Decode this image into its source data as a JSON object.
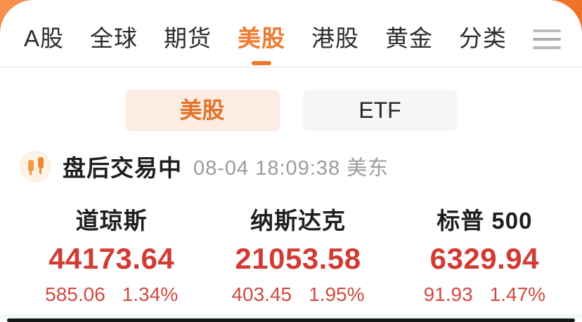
{
  "nav": {
    "tabs": [
      {
        "label": "A股",
        "active": false
      },
      {
        "label": "全球",
        "active": false
      },
      {
        "label": "期货",
        "active": false
      },
      {
        "label": "美股",
        "active": true
      },
      {
        "label": "港股",
        "active": false
      },
      {
        "label": "黄金",
        "active": false
      },
      {
        "label": "分类",
        "active": false
      }
    ],
    "menu_icon": "hamburger-menu"
  },
  "toggle": {
    "options": [
      {
        "label": "美股",
        "selected": true
      },
      {
        "label": "ETF",
        "selected": false
      }
    ]
  },
  "status": {
    "icon": "candlestick",
    "label": "盘后交易中",
    "timestamp": "08-04 18:09:38 美东"
  },
  "indices": [
    {
      "name": "道琼斯",
      "value": "44173.64",
      "change": "585.06",
      "change_pct": "1.34%"
    },
    {
      "name": "纳斯达克",
      "value": "21053.58",
      "change": "403.45",
      "change_pct": "1.95%"
    },
    {
      "name": "标普 500",
      "value": "6329.94",
      "change": "91.93",
      "change_pct": "1.47%"
    }
  ],
  "colors": {
    "accent_orange": "#ed7a2e",
    "up_red": "#d23b33",
    "change_red": "#cf4a42",
    "muted_gray": "#9b9b9b",
    "selected_pill_bg": "#fcece1",
    "plain_pill_bg": "#f5f6f8"
  }
}
